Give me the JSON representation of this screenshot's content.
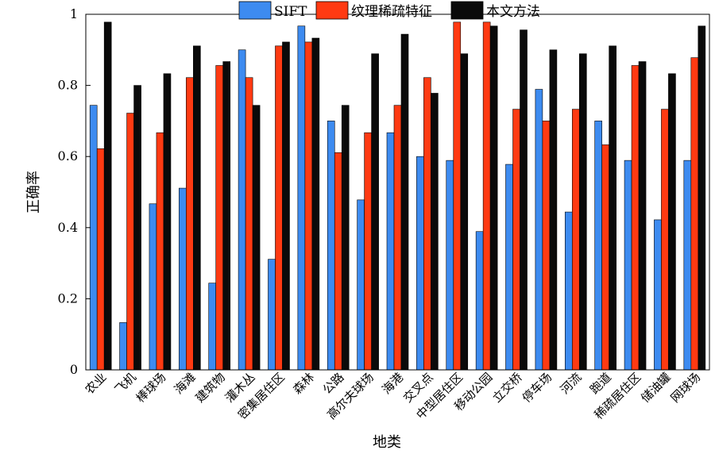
{
  "chart_data": {
    "type": "bar",
    "xlabel": "地类",
    "ylabel": "正确率",
    "ylim": [
      0,
      1
    ],
    "yticks": [
      "0",
      "0.2",
      "0.4",
      "0.6",
      "0.8",
      "1"
    ],
    "legend_position": "top",
    "categories": [
      "农业",
      "飞机",
      "棒球场",
      "海滩",
      "建筑物",
      "灌木丛",
      "密集居住区",
      "森林",
      "公路",
      "高尔夫球场",
      "海港",
      "交叉点",
      "中型居住区",
      "移动公园",
      "立交桥",
      "停车场",
      "河流",
      "跑道",
      "稀疏居住区",
      "储油罐",
      "网球场"
    ],
    "series": [
      {
        "name": "SIFT",
        "color": "#3D8BF0",
        "values": [
          0.744,
          0.133,
          0.467,
          0.511,
          0.244,
          0.9,
          0.311,
          0.967,
          0.7,
          0.478,
          0.667,
          0.6,
          0.589,
          0.389,
          0.578,
          0.789,
          0.444,
          0.7,
          0.589,
          0.422,
          0.589
        ]
      },
      {
        "name": "纹理稀疏特征",
        "color": "#FF3A12",
        "values": [
          0.622,
          0.722,
          0.667,
          0.822,
          0.856,
          0.822,
          0.911,
          0.922,
          0.611,
          0.667,
          0.744,
          0.822,
          0.978,
          0.978,
          0.733,
          0.7,
          0.733,
          0.633,
          0.856,
          0.733,
          0.878
        ]
      },
      {
        "name": "本文方法",
        "color": "#0a0a0a",
        "values": [
          0.978,
          0.8,
          0.833,
          0.911,
          0.867,
          0.744,
          0.922,
          0.933,
          0.744,
          0.889,
          0.944,
          0.778,
          0.889,
          0.967,
          0.956,
          0.9,
          0.889,
          0.911,
          0.867,
          0.833,
          0.967
        ]
      }
    ]
  }
}
